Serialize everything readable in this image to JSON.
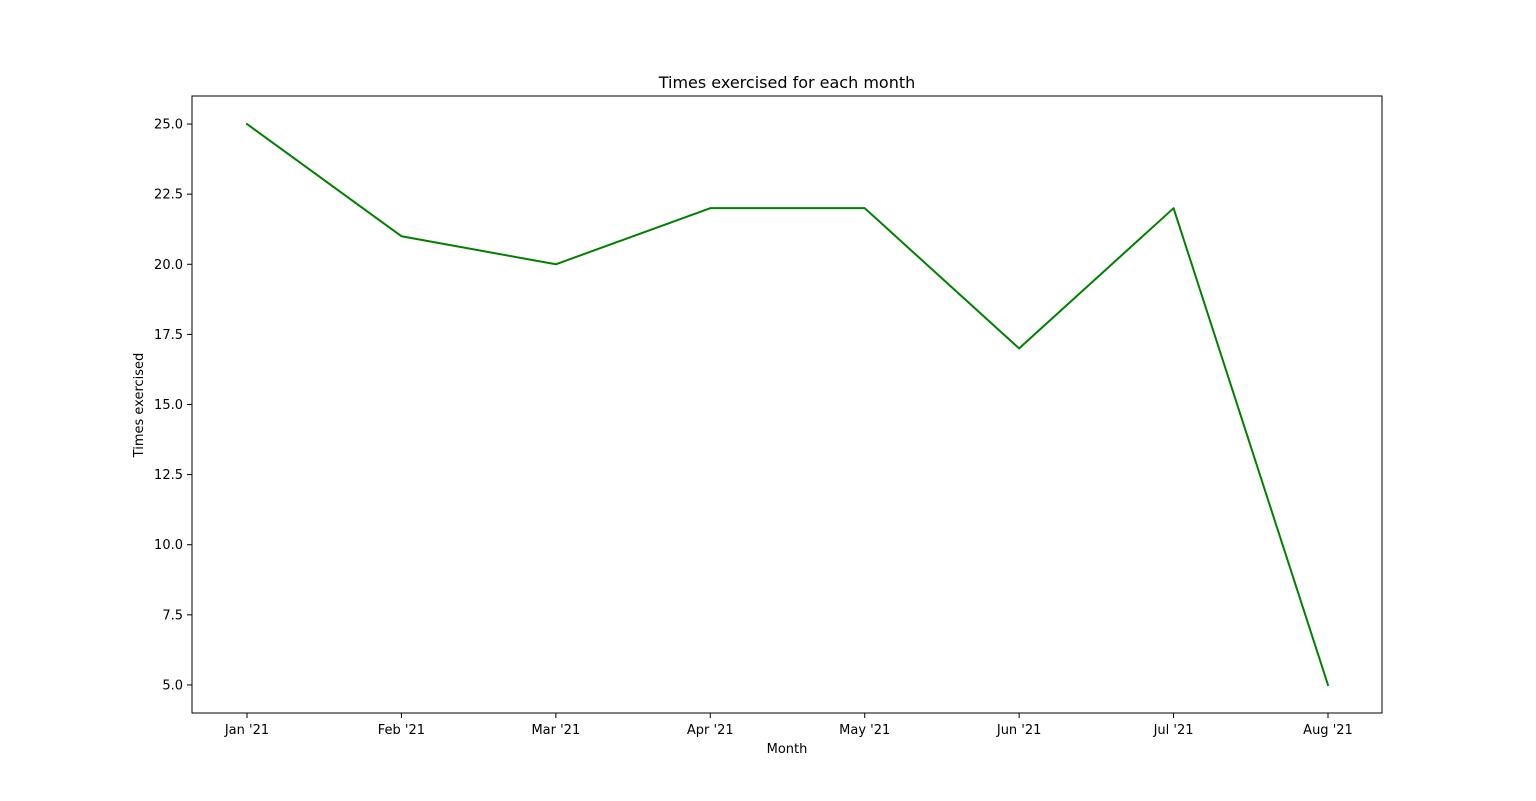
{
  "chart_data": {
    "type": "line",
    "title": "Times exercised for each month",
    "xlabel": "Month",
    "ylabel": "Times exercised",
    "categories": [
      "Jan '21",
      "Feb '21",
      "Mar '21",
      "Apr '21",
      "May '21",
      "Jun '21",
      "Jul '21",
      "Aug '21"
    ],
    "series": [
      {
        "values": [
          25,
          21,
          20,
          22,
          22,
          17,
          22,
          5
        ],
        "color": "#008000"
      }
    ],
    "ylim": [
      4.0,
      26.0
    ],
    "yticks": [
      5.0,
      7.5,
      10.0,
      12.5,
      15.0,
      17.5,
      20.0,
      22.5,
      25.0
    ],
    "ytick_labels": [
      "5.0",
      "7.5",
      "10.0",
      "12.5",
      "15.0",
      "17.5",
      "20.0",
      "22.5",
      "25.0"
    ],
    "grid": false,
    "legend": "none"
  }
}
